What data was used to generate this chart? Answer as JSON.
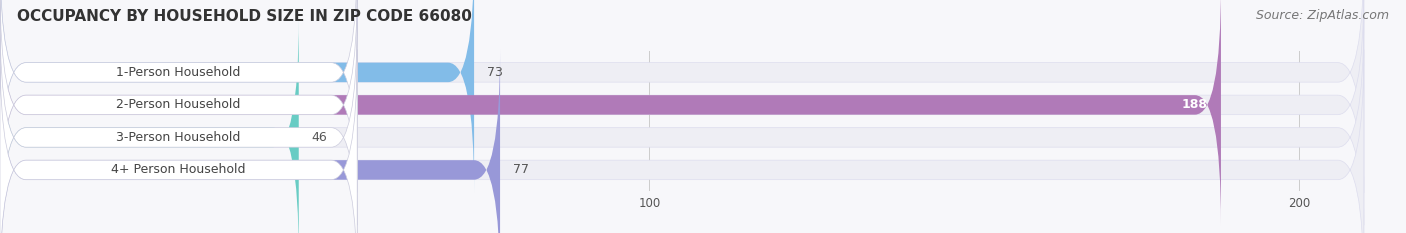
{
  "title": "OCCUPANCY BY HOUSEHOLD SIZE IN ZIP CODE 66080",
  "source": "Source: ZipAtlas.com",
  "categories": [
    "1-Person Household",
    "2-Person Household",
    "3-Person Household",
    "4+ Person Household"
  ],
  "values": [
    73,
    188,
    46,
    77
  ],
  "bar_colors": [
    "#82bce8",
    "#b07ab8",
    "#68ccc4",
    "#9898d8"
  ],
  "bar_bg_color": "#eeeef4",
  "label_bg_color": "#ffffff",
  "xlim": [
    0,
    210
  ],
  "xticks": [
    0,
    100,
    200
  ],
  "title_fontsize": 11,
  "source_fontsize": 9,
  "label_fontsize": 9,
  "value_fontsize": 9,
  "figsize": [
    14.06,
    2.33
  ],
  "dpi": 100,
  "bg_color": "#f7f7fa"
}
